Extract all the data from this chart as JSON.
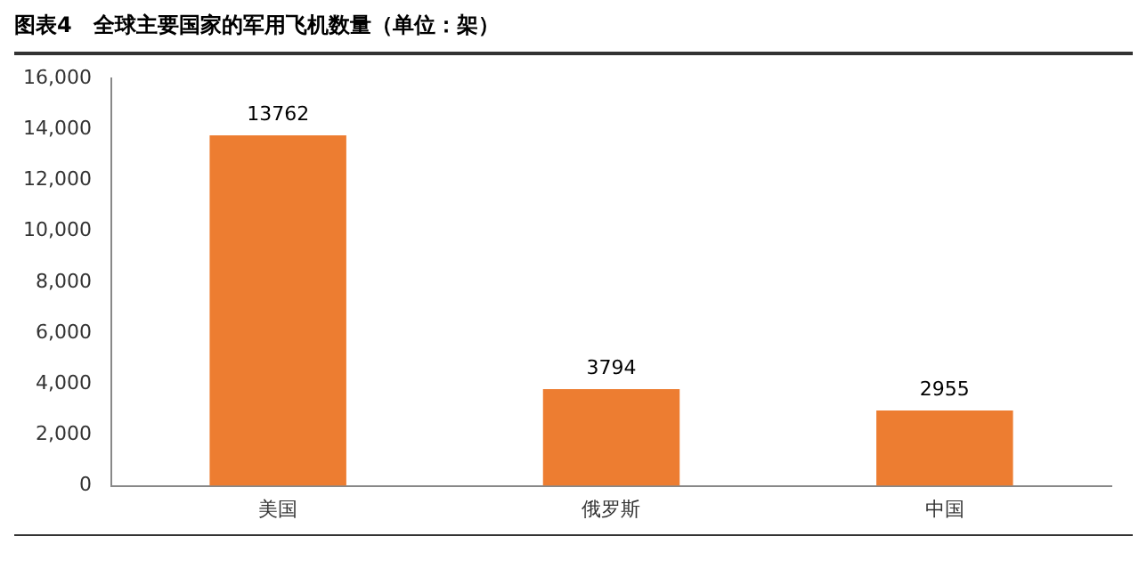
{
  "chart_data": {
    "type": "bar",
    "title": "图表4　全球主要国家的军用飞机数量（单位：架）",
    "categories": [
      "美国",
      "俄罗斯",
      "中国"
    ],
    "values": [
      13762,
      3794,
      2955
    ],
    "color": "#ed7d31",
    "ylim": [
      0,
      16000
    ],
    "yticks": [
      0,
      {
        "value": 2000,
        "label": "2,000"
      },
      {
        "value": 4000,
        "label": "4,000"
      },
      {
        "value": 6000,
        "label": "6,000"
      },
      {
        "value": 8000,
        "label": "8,000"
      },
      {
        "value": 10000,
        "label": "10,000"
      },
      {
        "value": 12000,
        "label": "12,000"
      },
      {
        "value": 14000,
        "label": "14,000"
      },
      {
        "value": 16000,
        "label": "16,000"
      }
    ],
    "grid": false,
    "legend": false,
    "data_labels": true
  }
}
